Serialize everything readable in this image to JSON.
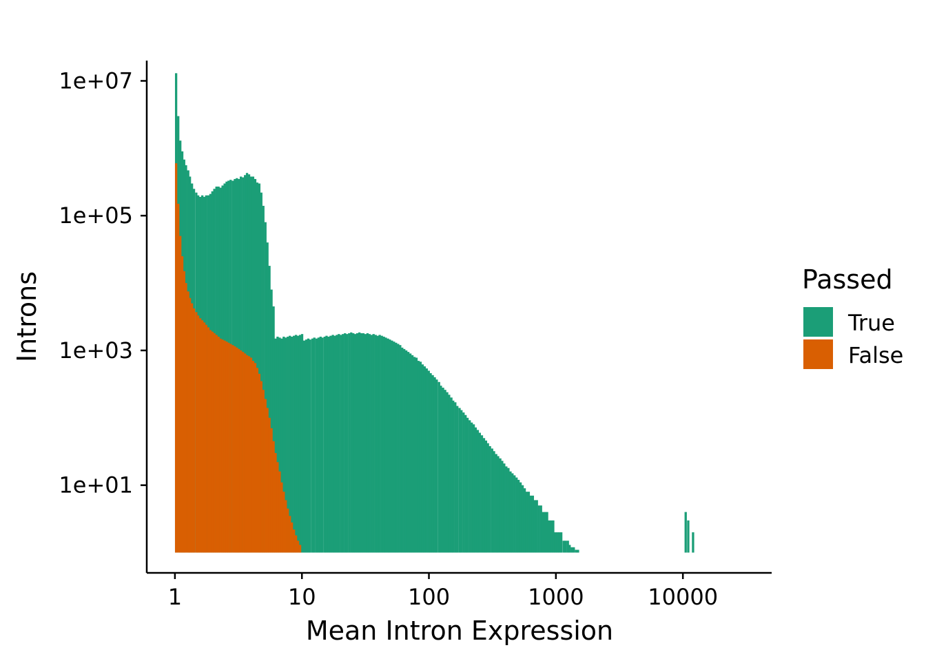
{
  "chart_data": {
    "type": "bar",
    "subtype": "histogram",
    "title": "",
    "xlabel": "Mean Intron Expression",
    "ylabel": "Introns",
    "x_scale": "log10",
    "y_scale": "log10",
    "xlim": [
      0.6,
      50000
    ],
    "ylim": [
      0.5,
      20000000
    ],
    "x_ticks": [
      {
        "value": 1,
        "label": "1"
      },
      {
        "value": 10,
        "label": "10"
      },
      {
        "value": 100,
        "label": "100"
      },
      {
        "value": 1000,
        "label": "1000"
      },
      {
        "value": 10000,
        "label": "10000"
      }
    ],
    "y_ticks": [
      {
        "value": 10,
        "label": "1e+01"
      },
      {
        "value": 1000,
        "label": "1e+03"
      },
      {
        "value": 100000,
        "label": "1e+05"
      },
      {
        "value": 10000000,
        "label": "1e+07"
      }
    ],
    "baseline": 1,
    "grid": false,
    "legend": {
      "title": "Passed",
      "position": "right",
      "entries": [
        {
          "label": "True",
          "color": "#1b9e77"
        },
        {
          "label": "False",
          "color": "#d95f02"
        }
      ]
    },
    "series": [
      {
        "name": "True",
        "color": "#1b9e77",
        "points": [
          [
            1.02,
            13000000
          ],
          [
            1.06,
            3000000
          ],
          [
            1.1,
            1300000
          ],
          [
            1.14,
            900000
          ],
          [
            1.18,
            680000
          ],
          [
            1.22,
            560000
          ],
          [
            1.27,
            470000
          ],
          [
            1.31,
            380000
          ],
          [
            1.36,
            300000
          ],
          [
            1.41,
            250000
          ],
          [
            1.47,
            220000
          ],
          [
            1.52,
            200000
          ],
          [
            1.58,
            190000
          ],
          [
            1.64,
            200000
          ],
          [
            1.7,
            190000
          ],
          [
            1.76,
            200000
          ],
          [
            1.83,
            200000
          ],
          [
            1.9,
            210000
          ],
          [
            1.97,
            230000
          ],
          [
            2.04,
            250000
          ],
          [
            2.12,
            270000
          ],
          [
            2.2,
            270000
          ],
          [
            2.28,
            260000
          ],
          [
            2.37,
            280000
          ],
          [
            2.46,
            300000
          ],
          [
            2.55,
            320000
          ],
          [
            2.64,
            330000
          ],
          [
            2.74,
            340000
          ],
          [
            2.85,
            330000
          ],
          [
            2.96,
            350000
          ],
          [
            3.07,
            360000
          ],
          [
            3.18,
            350000
          ],
          [
            3.3,
            380000
          ],
          [
            3.43,
            370000
          ],
          [
            3.56,
            400000
          ],
          [
            3.69,
            430000
          ],
          [
            3.83,
            410000
          ],
          [
            3.97,
            380000
          ],
          [
            4.12,
            380000
          ],
          [
            4.28,
            350000
          ],
          [
            4.44,
            310000
          ],
          [
            4.61,
            300000
          ],
          [
            4.78,
            220000
          ],
          [
            4.96,
            140000
          ],
          [
            5.15,
            80000
          ],
          [
            5.34,
            40000
          ],
          [
            5.54,
            18000
          ],
          [
            5.75,
            8000
          ],
          [
            5.97,
            4500
          ],
          [
            6.19,
            1500
          ],
          [
            6.42,
            1600
          ],
          [
            6.67,
            1550
          ],
          [
            6.92,
            1500
          ],
          [
            7.18,
            1600
          ],
          [
            7.45,
            1550
          ],
          [
            7.73,
            1600
          ],
          [
            8.02,
            1650
          ],
          [
            8.32,
            1600
          ],
          [
            8.64,
            1650
          ],
          [
            8.96,
            1700
          ],
          [
            9.3,
            1650
          ],
          [
            9.65,
            1700
          ],
          [
            10.02,
            1750
          ]
        ],
        "points_continued": [
          [
            10.4,
            1400
          ],
          [
            10.8,
            1450
          ],
          [
            11.2,
            1500
          ],
          [
            11.6,
            1450
          ],
          [
            12.1,
            1500
          ],
          [
            12.5,
            1550
          ],
          [
            13,
            1500
          ],
          [
            13.5,
            1550
          ],
          [
            14,
            1600
          ],
          [
            14.5,
            1550
          ],
          [
            15.1,
            1600
          ],
          [
            15.6,
            1650
          ],
          [
            16.2,
            1600
          ],
          [
            16.8,
            1650
          ],
          [
            17.5,
            1700
          ],
          [
            18.1,
            1650
          ],
          [
            18.8,
            1700
          ],
          [
            19.5,
            1750
          ],
          [
            20.3,
            1700
          ],
          [
            21,
            1750
          ],
          [
            21.8,
            1800
          ],
          [
            22.6,
            1750
          ],
          [
            23.5,
            1800
          ],
          [
            24.4,
            1850
          ],
          [
            25.3,
            1800
          ],
          [
            26.2,
            1750
          ],
          [
            27.2,
            1800
          ],
          [
            28.3,
            1850
          ],
          [
            29.3,
            1800
          ],
          [
            30.4,
            1800
          ],
          [
            31.6,
            1750
          ],
          [
            32.8,
            1800
          ],
          [
            34,
            1750
          ],
          [
            35.3,
            1700
          ],
          [
            36.6,
            1750
          ],
          [
            38,
            1700
          ],
          [
            39.4,
            1650
          ],
          [
            40.9,
            1700
          ],
          [
            42.5,
            1650
          ],
          [
            44.1,
            1600
          ],
          [
            45.7,
            1550
          ],
          [
            47.5,
            1500
          ],
          [
            49.2,
            1450
          ],
          [
            51.1,
            1400
          ],
          [
            53,
            1350
          ],
          [
            55,
            1300
          ],
          [
            57.1,
            1250
          ],
          [
            59.3,
            1200
          ],
          [
            61.5,
            1100
          ],
          [
            63.8,
            1050
          ],
          [
            66.2,
            1000
          ],
          [
            68.7,
            950
          ],
          [
            71.3,
            900
          ],
          [
            74,
            850
          ],
          [
            76.8,
            800
          ],
          [
            79.7,
            780
          ],
          [
            82.7,
            700
          ],
          [
            85.8,
            680
          ],
          [
            89.1,
            620
          ],
          [
            92.4,
            580
          ],
          [
            95.9,
            540
          ],
          [
            99.5,
            500
          ],
          [
            103,
            460
          ],
          [
            107,
            430
          ],
          [
            111,
            400
          ],
          [
            115,
            370
          ],
          [
            120,
            340
          ],
          [
            124,
            300
          ],
          [
            129,
            280
          ],
          [
            134,
            260
          ],
          [
            139,
            240
          ],
          [
            144,
            220
          ],
          [
            150,
            200
          ],
          [
            155,
            180
          ],
          [
            161,
            170
          ],
          [
            167,
            150
          ],
          [
            174,
            140
          ],
          [
            180,
            130
          ],
          [
            187,
            120
          ],
          [
            194,
            110
          ],
          [
            201,
            100
          ],
          [
            209,
            92
          ],
          [
            217,
            85
          ],
          [
            225,
            80
          ],
          [
            233,
            72
          ],
          [
            242,
            66
          ],
          [
            251,
            60
          ],
          [
            261,
            55
          ],
          [
            271,
            50
          ],
          [
            281,
            46
          ],
          [
            291,
            42
          ],
          [
            302,
            38
          ],
          [
            314,
            35
          ],
          [
            325,
            32
          ],
          [
            338,
            29
          ],
          [
            350,
            27
          ],
          [
            364,
            25
          ],
          [
            377,
            23
          ],
          [
            391,
            21
          ],
          [
            406,
            19
          ],
          [
            422,
            18
          ],
          [
            438,
            16
          ],
          [
            454,
            15
          ],
          [
            471,
            14
          ],
          [
            489,
            13
          ]
        ]
      },
      {
        "name": "False",
        "color": "#d95f02",
        "points": [
          [
            1.02,
            600000
          ],
          [
            1.06,
            150000
          ],
          [
            1.1,
            50000
          ],
          [
            1.14,
            25000
          ],
          [
            1.18,
            15000
          ],
          [
            1.22,
            10000
          ],
          [
            1.27,
            7500
          ],
          [
            1.31,
            6000
          ],
          [
            1.36,
            5000
          ],
          [
            1.41,
            4200
          ],
          [
            1.47,
            3700
          ],
          [
            1.52,
            3300
          ],
          [
            1.58,
            3000
          ],
          [
            1.64,
            2800
          ],
          [
            1.7,
            2600
          ],
          [
            1.76,
            2400
          ],
          [
            1.83,
            2200
          ],
          [
            1.9,
            2000
          ],
          [
            1.97,
            1900
          ],
          [
            2.04,
            1800
          ],
          [
            2.12,
            1700
          ],
          [
            2.2,
            1600
          ],
          [
            2.28,
            1500
          ],
          [
            2.37,
            1450
          ],
          [
            2.46,
            1400
          ],
          [
            2.55,
            1350
          ],
          [
            2.64,
            1300
          ],
          [
            2.74,
            1250
          ],
          [
            2.85,
            1200
          ],
          [
            2.96,
            1150
          ],
          [
            3.07,
            1100
          ],
          [
            3.18,
            1050
          ],
          [
            3.3,
            1000
          ],
          [
            3.43,
            950
          ],
          [
            3.56,
            900
          ],
          [
            3.69,
            850
          ],
          [
            3.83,
            820
          ],
          [
            3.97,
            780
          ],
          [
            4.12,
            700
          ],
          [
            4.28,
            650
          ],
          [
            4.44,
            550
          ],
          [
            4.61,
            450
          ],
          [
            4.78,
            350
          ],
          [
            4.96,
            260
          ],
          [
            5.15,
            190
          ],
          [
            5.34,
            140
          ],
          [
            5.54,
            100
          ],
          [
            5.75,
            70
          ],
          [
            5.97,
            45
          ],
          [
            6.19,
            30
          ],
          [
            6.42,
            22
          ],
          [
            6.67,
            16
          ],
          [
            6.92,
            11
          ],
          [
            7.18,
            8
          ],
          [
            7.45,
            6
          ],
          [
            7.73,
            4.5
          ],
          [
            8.02,
            3.5
          ],
          [
            8.32,
            2.8
          ],
          [
            8.64,
            2.2
          ],
          [
            8.96,
            1.8
          ],
          [
            9.3,
            1.5
          ],
          [
            9.65,
            1.3
          ]
        ]
      }
    ],
    "true_tail": [
      [
        507,
        12
      ],
      [
        526,
        11
      ],
      [
        546,
        10
      ],
      [
        567,
        9
      ],
      [
        588,
        8
      ],
      [
        610,
        8
      ],
      [
        633,
        7
      ],
      [
        657,
        7
      ],
      [
        682,
        6
      ],
      [
        707,
        6
      ],
      [
        734,
        5
      ],
      [
        762,
        5
      ],
      [
        790,
        4
      ],
      [
        820,
        4
      ],
      [
        851,
        4
      ],
      [
        883,
        3
      ],
      [
        916,
        3
      ],
      [
        951,
        3
      ],
      [
        987,
        2
      ],
      [
        1024,
        2
      ],
      [
        1060,
        2
      ],
      [
        1100,
        2
      ],
      [
        1150,
        1.5
      ],
      [
        1190,
        1.5
      ],
      [
        1240,
        1.5
      ],
      [
        1280,
        1.3
      ],
      [
        1330,
        1.2
      ],
      [
        1380,
        1.2
      ],
      [
        1440,
        1.1
      ],
      [
        1490,
        1.1
      ],
      [
        10500,
        4
      ],
      [
        11000,
        3
      ],
      [
        12000,
        2
      ]
    ]
  }
}
